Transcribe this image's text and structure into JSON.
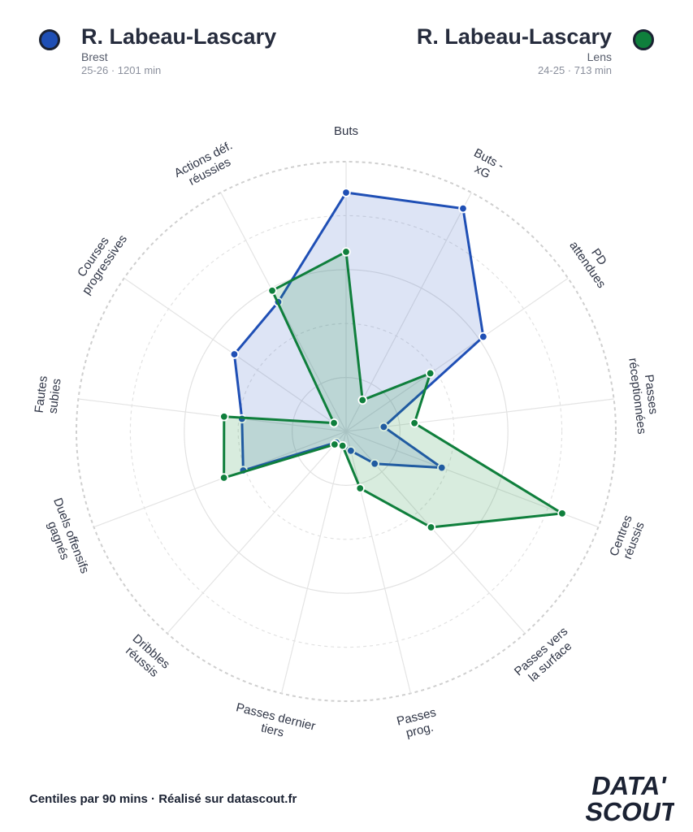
{
  "players": [
    {
      "name": "R. Labeau-Lascary",
      "club": "Brest",
      "meta": "25-26 · 1201 min",
      "color": "#1f4fb5"
    },
    {
      "name": "R. Labeau-Lascary",
      "club": "Lens",
      "meta": "24-25 · 713 min",
      "color": "#0f7f3c"
    }
  ],
  "footer": "Centiles par 90 mins · Réalisé sur datascout.fr",
  "logo": {
    "line1": "DATA'",
    "line2": "SCOUT"
  },
  "chart_data": {
    "type": "radar",
    "title": "",
    "axes": [
      {
        "label": "Buts"
      },
      {
        "label": "Buts - xG"
      },
      {
        "label": "PD attendues"
      },
      {
        "label": "Passes réceptionnées"
      },
      {
        "label": "Centres réussis"
      },
      {
        "label": "Passes vers la surface"
      },
      {
        "label": "Passes prog."
      },
      {
        "label": "Passes dernier tiers"
      },
      {
        "label": "Dribbles réussis"
      },
      {
        "label": "Duels offensifs gagnés"
      },
      {
        "label": "Fautes subies"
      },
      {
        "label": "Courses progressives"
      },
      {
        "label": "Actions déf. réussies"
      }
    ],
    "range": [
      0,
      100
    ],
    "grid": true,
    "series": [
      {
        "name": "R. Labeau-Lascary",
        "color": "#1f4fb5",
        "fill": "rgba(45,85,190,0.16)",
        "values": [
          88,
          93,
          60,
          10,
          35,
          12,
          3,
          1,
          1,
          38,
          36,
          48,
          52
        ]
      },
      {
        "name": "R. Labeau-Lascary",
        "color": "#0f7f3c",
        "fill": "rgba(40,150,70,0.18)",
        "values": [
          65,
          9,
          35,
          22,
          85,
          45,
          18,
          1,
          2,
          46,
          43,
          1,
          57
        ]
      }
    ]
  }
}
